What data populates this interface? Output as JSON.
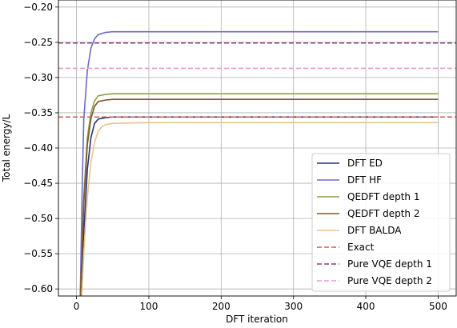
{
  "chart_data": {
    "type": "line",
    "xlabel": "DFT iteration",
    "ylabel": "Total energy/L",
    "xlim": [
      -25,
      525
    ],
    "ylim": [
      -0.61,
      -0.19
    ],
    "x_ticks": [
      0,
      100,
      200,
      300,
      400,
      500
    ],
    "x_tick_labels": [
      "0",
      "100",
      "200",
      "300",
      "400",
      "500"
    ],
    "y_ticks": [
      -0.6,
      -0.55,
      -0.5,
      -0.45,
      -0.4,
      -0.35,
      -0.3,
      -0.25,
      -0.2
    ],
    "y_tick_labels": [
      "−0.60",
      "−0.55",
      "−0.50",
      "−0.45",
      "−0.40",
      "−0.35",
      "−0.30",
      "−0.25",
      "−0.20"
    ],
    "grid": true,
    "legend_position": "lower right",
    "series": [
      {
        "name": "DFT ED",
        "kind": "convergence",
        "color": "#2b2f7a",
        "dash": false,
        "x": [
          5,
          10,
          15,
          20,
          25,
          30,
          40,
          50,
          100,
          200,
          300,
          400,
          500
        ],
        "y": [
          -0.62,
          -0.52,
          -0.43,
          -0.385,
          -0.365,
          -0.359,
          -0.357,
          -0.356,
          -0.356,
          -0.356,
          -0.356,
          -0.356,
          -0.356
        ]
      },
      {
        "name": "DFT HF",
        "kind": "convergence",
        "color": "#6b6bc4",
        "dash": false,
        "x": [
          5,
          8,
          10,
          15,
          20,
          25,
          30,
          40,
          50,
          100,
          200,
          300,
          400,
          500
        ],
        "y": [
          -0.62,
          -0.45,
          -0.36,
          -0.29,
          -0.258,
          -0.245,
          -0.239,
          -0.236,
          -0.235,
          -0.235,
          -0.235,
          -0.235,
          -0.235,
          -0.235
        ]
      },
      {
        "name": "QEDFT depth 1",
        "kind": "convergence",
        "color": "#8aa04a",
        "dash": false,
        "x": [
          5,
          10,
          15,
          20,
          25,
          30,
          40,
          50,
          100,
          200,
          300,
          400,
          500
        ],
        "y": [
          -0.62,
          -0.47,
          -0.385,
          -0.35,
          -0.333,
          -0.326,
          -0.324,
          -0.323,
          -0.323,
          -0.323,
          -0.323,
          -0.323,
          -0.323
        ]
      },
      {
        "name": "QEDFT depth 2",
        "kind": "convergence",
        "color": "#7b5a28",
        "dash": false,
        "x": [
          5,
          10,
          15,
          20,
          25,
          30,
          40,
          50,
          100,
          200,
          300,
          400,
          500
        ],
        "y": [
          -0.62,
          -0.48,
          -0.395,
          -0.358,
          -0.341,
          -0.334,
          -0.332,
          -0.331,
          -0.331,
          -0.331,
          -0.331,
          -0.331,
          -0.331
        ]
      },
      {
        "name": "DFT BALDA",
        "kind": "convergence",
        "color": "#e8c48e",
        "dash": false,
        "x": [
          7,
          10,
          15,
          20,
          25,
          30,
          35,
          40,
          50,
          100,
          200,
          300,
          400,
          500
        ],
        "y": [
          -0.62,
          -0.55,
          -0.47,
          -0.42,
          -0.392,
          -0.376,
          -0.37,
          -0.367,
          -0.365,
          -0.364,
          -0.364,
          -0.364,
          -0.364,
          -0.364
        ]
      },
      {
        "name": "Exact",
        "kind": "hline",
        "color": "#cc5a5a",
        "dash": true,
        "y": -0.356
      },
      {
        "name": "Pure VQE depth 1",
        "kind": "hline",
        "color": "#8b3a7a",
        "dash": true,
        "y": -0.251
      },
      {
        "name": "Pure VQE depth 2",
        "kind": "hline",
        "color": "#e59ad9",
        "dash": true,
        "y": -0.287
      }
    ]
  }
}
